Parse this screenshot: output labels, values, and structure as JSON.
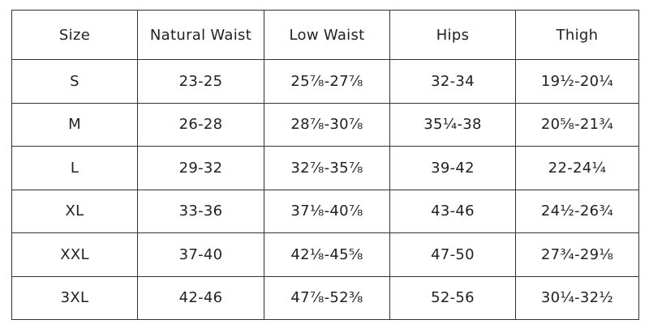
{
  "table": {
    "header": [
      "Size",
      "Natural Waist",
      "Low Waist",
      "Hips",
      "Thigh"
    ],
    "rows": [
      [
        "S",
        "23-25",
        "25⅞-27⅞",
        "32-34",
        "19½-20¼"
      ],
      [
        "M",
        "26-28",
        "28⅞-30⅞",
        "35¼-38",
        "20⅝-21¾"
      ],
      [
        "L",
        "29-32",
        "32⅞-35⅞",
        "39-42",
        "22-24¼"
      ],
      [
        "XL",
        "33-36",
        "37⅛-40⅞",
        "43-46",
        "24½-26¾"
      ],
      [
        "XXL",
        "37-40",
        "42⅛-45⅝",
        "47-50",
        "27¾-29⅛"
      ],
      [
        "3XL",
        "42-46",
        "47⅞-52⅜",
        "52-56",
        "30¼-32½"
      ]
    ]
  }
}
